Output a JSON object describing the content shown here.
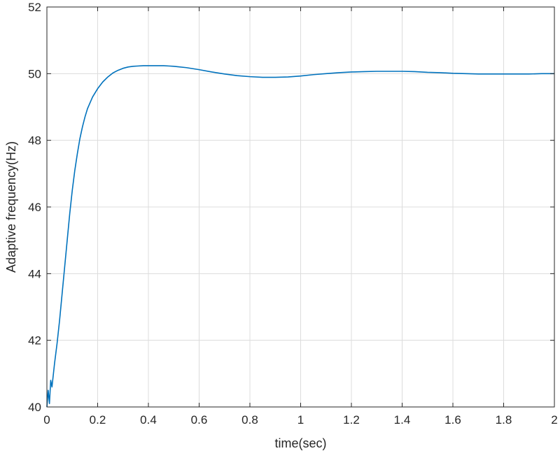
{
  "chart_data": {
    "type": "line",
    "title": "",
    "xlabel": "time(sec)",
    "ylabel": "Adaptive frequency(Hz)",
    "xlim": [
      0,
      2
    ],
    "ylim": [
      40,
      52
    ],
    "grid": true,
    "x_ticks": [
      0,
      0.2,
      0.4,
      0.6,
      0.8,
      1,
      1.2,
      1.4,
      1.6,
      1.8,
      2
    ],
    "y_ticks": [
      40,
      42,
      44,
      46,
      48,
      50,
      52
    ],
    "series": [
      {
        "color": "#0072BD",
        "x": [
          0,
          0.005,
          0.01,
          0.015,
          0.02,
          0.03,
          0.04,
          0.05,
          0.06,
          0.07,
          0.08,
          0.09,
          0.1,
          0.11,
          0.12,
          0.13,
          0.14,
          0.15,
          0.16,
          0.18,
          0.2,
          0.22,
          0.24,
          0.26,
          0.28,
          0.3,
          0.32,
          0.34,
          0.36,
          0.38,
          0.4,
          0.42,
          0.44,
          0.46,
          0.48,
          0.5,
          0.55,
          0.6,
          0.65,
          0.7,
          0.75,
          0.8,
          0.85,
          0.9,
          0.95,
          1.0,
          1.05,
          1.1,
          1.15,
          1.2,
          1.25,
          1.3,
          1.35,
          1.4,
          1.45,
          1.5,
          1.55,
          1.6,
          1.65,
          1.7,
          1.75,
          1.8,
          1.85,
          1.9,
          1.95,
          2.0
        ],
        "y": [
          40.0,
          40.5,
          40.1,
          40.8,
          40.6,
          41.3,
          41.9,
          42.6,
          43.4,
          44.2,
          45.0,
          45.8,
          46.5,
          47.1,
          47.6,
          48.05,
          48.4,
          48.7,
          48.95,
          49.3,
          49.55,
          49.75,
          49.9,
          50.02,
          50.1,
          50.16,
          50.2,
          50.22,
          50.23,
          50.24,
          50.24,
          50.24,
          50.24,
          50.24,
          50.23,
          50.22,
          50.18,
          50.12,
          50.05,
          49.99,
          49.94,
          49.91,
          49.89,
          49.89,
          49.9,
          49.93,
          49.97,
          50.0,
          50.03,
          50.05,
          50.06,
          50.07,
          50.07,
          50.07,
          50.06,
          50.04,
          50.03,
          50.01,
          50.0,
          49.99,
          49.99,
          49.99,
          49.99,
          49.99,
          50.0,
          50.0
        ]
      }
    ]
  }
}
